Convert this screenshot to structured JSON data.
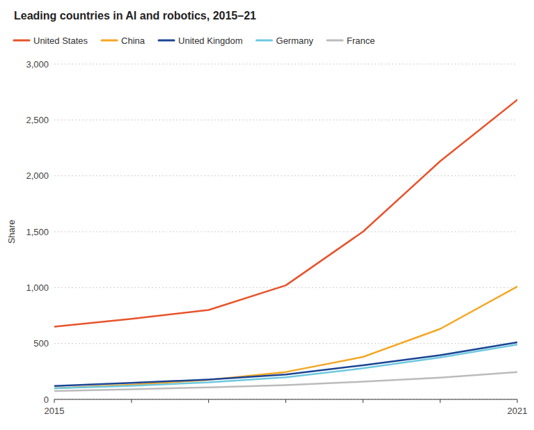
{
  "chart_data": {
    "type": "line",
    "title": "Leading countries in AI and robotics, 2015–21",
    "ylabel": "Share",
    "x": [
      2015,
      2016,
      2017,
      2018,
      2019,
      2020,
      2021
    ],
    "series": [
      {
        "name": "United States",
        "color": "#E8532B",
        "values": [
          650,
          720,
          800,
          1020,
          1500,
          2130,
          2680
        ]
      },
      {
        "name": "China",
        "color": "#F5A623",
        "values": [
          100,
          130,
          175,
          245,
          380,
          630,
          1010
        ]
      },
      {
        "name": "United Kingdom",
        "color": "#1A4494",
        "values": [
          120,
          148,
          178,
          222,
          305,
          395,
          510
        ]
      },
      {
        "name": "Germany",
        "color": "#6DC8E0",
        "values": [
          100,
          122,
          152,
          198,
          278,
          375,
          490
        ]
      },
      {
        "name": "France",
        "color": "#BBBBBB",
        "values": [
          75,
          90,
          108,
          128,
          158,
          195,
          245
        ]
      }
    ],
    "xlim": [
      2015,
      2021
    ],
    "xticks": [
      2015,
      {
        "value": 2016,
        "label": null
      },
      {
        "value": 2017,
        "label": null
      },
      {
        "value": 2018,
        "label": null
      },
      {
        "value": 2019,
        "label": null
      },
      {
        "value": 2020,
        "label": null
      },
      2021
    ],
    "ylim": [
      0,
      3000
    ],
    "yticks": [
      0,
      500,
      {
        "value": 1000,
        "label": "1,000"
      },
      {
        "value": 1500,
        "label": "1,500"
      },
      {
        "value": 2000,
        "label": "2,000"
      },
      {
        "value": 2500,
        "label": "2,500"
      },
      {
        "value": 3000,
        "label": "3,000"
      }
    ],
    "grid": true,
    "legend": "top"
  }
}
